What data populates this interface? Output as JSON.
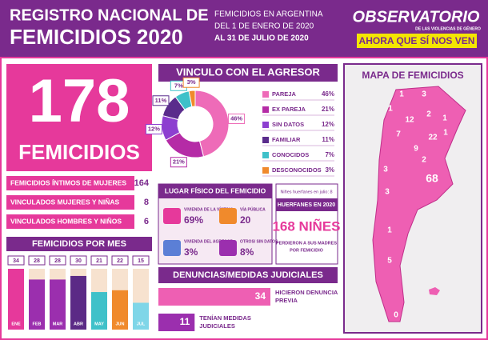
{
  "header": {
    "title_line1": "REGISTRO NACIONAL DE",
    "title_line2": "FEMICIDIOS 2020",
    "subtitle_lines": [
      "FEMICIDIOS EN ARGENTINA",
      "DEL 1 DE ENERO DE 2020",
      "AL 31 DE JULIO DE 2020"
    ],
    "logo": {
      "name": "OBSERVATORIO",
      "tagline": "DE LAS VIOLENCIAS DE GÉNERO",
      "slogan": "AHORA QUE SÍ NOS VEN"
    }
  },
  "total": {
    "value": 178,
    "label": "FEMICIDIOS"
  },
  "breakdown": [
    {
      "label": "FEMICIDIOS ÍNTIMOS DE MUJERES",
      "value": 164
    },
    {
      "label": "VINCULADOS MUJERES Y NIÑAS",
      "value": 8
    },
    {
      "label": "VINCULADOS HOMBRES Y NIÑOS",
      "value": 6
    }
  ],
  "monthly": {
    "title": "FEMICIDIOS POR MES",
    "categories": [
      "ENE",
      "FEB",
      "MAR",
      "ABR",
      "MAY",
      "JUN",
      "JUL"
    ],
    "values": [
      34,
      28,
      28,
      30,
      21,
      22,
      15
    ],
    "colors": [
      "#e6399b",
      "#9b2fae",
      "#9b2fae",
      "#5b2a86",
      "#3fc1c9",
      "#f08a2c",
      "#7fd6e8"
    ]
  },
  "relationship": {
    "title": "VINCULO CON EL AGRESOR",
    "categories": [
      "PAREJA",
      "EX PAREJA",
      "SIN DATOS",
      "FAMILIAR",
      "CONOCIDOS",
      "DESCONOCIDOS"
    ],
    "values": [
      46,
      21,
      12,
      11,
      7,
      3
    ],
    "value_labels": [
      "46%",
      "21%",
      "12%",
      "11%",
      "7%",
      "3%"
    ],
    "colors": [
      "#ee6bb8",
      "#b52ba6",
      "#8d3fd0",
      "#5a2c8c",
      "#3fc1c9",
      "#f08a2c"
    ]
  },
  "location": {
    "title": "LUGAR FÍSICO DEL FEMICIDIO",
    "items": [
      {
        "label": "VIVIENDA DE LA VÍCTIMA",
        "value": 69,
        "value_label": "69%"
      },
      {
        "label": "VÍA PÚBLICA",
        "value": 20
      },
      {
        "label": "VIVIENDA DEL AGRESOR",
        "value": 3,
        "value_label": "3%"
      },
      {
        "label": "OTROS/ SIN DATOS",
        "value": 8,
        "value_label": "8%"
      }
    ]
  },
  "orphans": {
    "july_note": "Niñes huerfanes en julio: 8",
    "heading": "HUERFANES EN 2020",
    "value": 168,
    "value_label": "168 NIÑES",
    "caption_lines": [
      "PERDIERON A SUS MADRES",
      "POR FEMICIDIO"
    ]
  },
  "judicial": {
    "title": "DENUNCIAS/MEDIDAS JUDICIALES",
    "items": [
      {
        "value": 34,
        "label_lines": [
          "HICIERON DENUNCIA",
          "PREVIA"
        ]
      },
      {
        "value": 11,
        "label_lines": [
          "TENÍAN MEDIDAS",
          "JUDICIALES"
        ]
      }
    ]
  },
  "map": {
    "title": "MAPA DE FEMICIDIOS",
    "labels": [
      "1",
      "3",
      "1",
      "12",
      "2",
      "1",
      "7",
      "22",
      "1",
      "9",
      "2",
      "68",
      "3",
      "3",
      "1",
      "5",
      "0"
    ]
  }
}
